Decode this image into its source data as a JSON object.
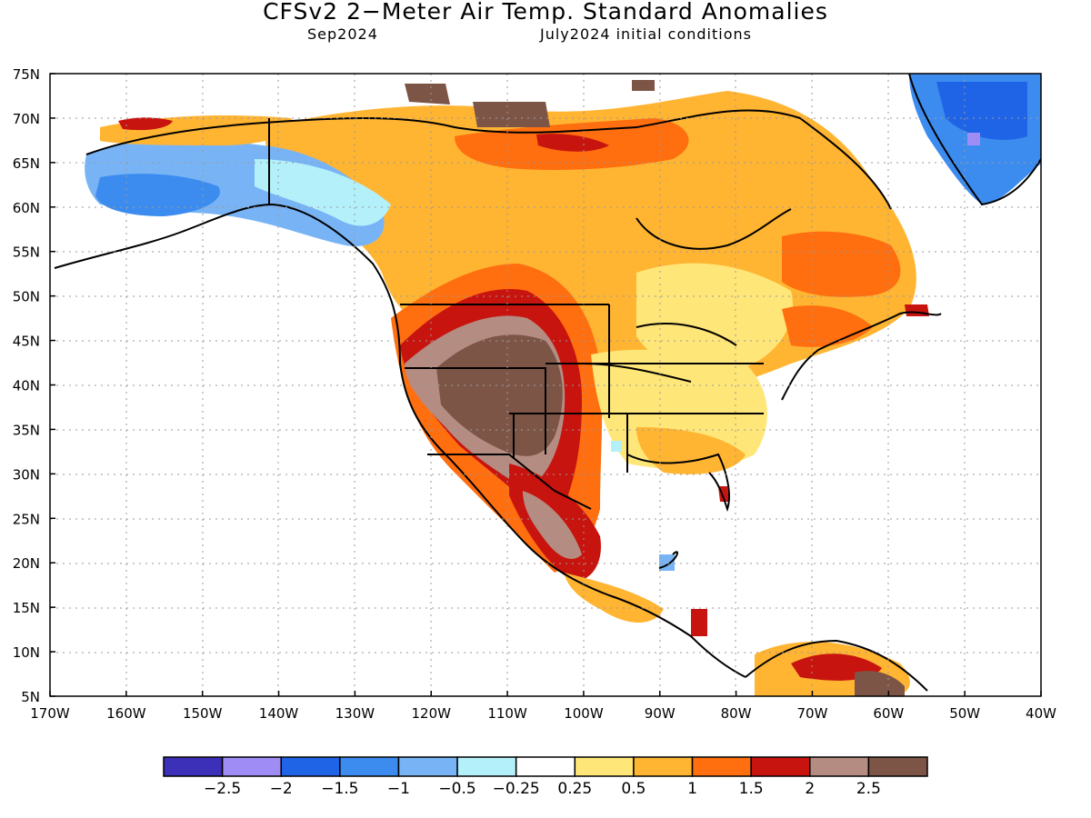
{
  "title": "CFSv2 2−Meter Air Temp. Standard Anomalies",
  "valid_month": "Sep2024",
  "initial_conditions": "July2024 initial conditions",
  "lat_labels": [
    "75N",
    "70N",
    "65N",
    "60N",
    "55N",
    "50N",
    "45N",
    "40N",
    "35N",
    "30N",
    "25N",
    "20N",
    "15N",
    "10N",
    "5N"
  ],
  "lon_labels": [
    "170W",
    "160W",
    "150W",
    "140W",
    "130W",
    "120W",
    "110W",
    "100W",
    "90W",
    "80W",
    "70W",
    "60W",
    "50W",
    "40W"
  ],
  "colorbar": {
    "colors": [
      "#3c2fb8",
      "#a08cf5",
      "#1f64e6",
      "#3c8cf0",
      "#78b4f5",
      "#b4f0fa",
      "#ffffff",
      "#ffe678",
      "#ffb432",
      "#ff6e0f",
      "#c8140f",
      "#b48c82",
      "#7d5546"
    ],
    "labels": [
      "−2.5",
      "−2",
      "−1.5",
      "−1",
      "−0.5",
      "−0.25",
      "0.25",
      "0.5",
      "1",
      "1.5",
      "2",
      "2.5"
    ]
  },
  "map_regions": [
    {
      "name": "alaska-interior",
      "category": "-1 to -0.5"
    },
    {
      "name": "alaska-southwest",
      "category": "-1.5 to -1"
    },
    {
      "name": "greenland",
      "category": "-2 to -1"
    },
    {
      "name": "great-basin-rockies",
      "category": ">2.5"
    },
    {
      "name": "mexico-highlands",
      "category": "2 to 2.5"
    },
    {
      "name": "central-canada",
      "category": "0.5 to 1"
    },
    {
      "name": "eastern-us",
      "category": "0.25 to 0.5"
    }
  ]
}
